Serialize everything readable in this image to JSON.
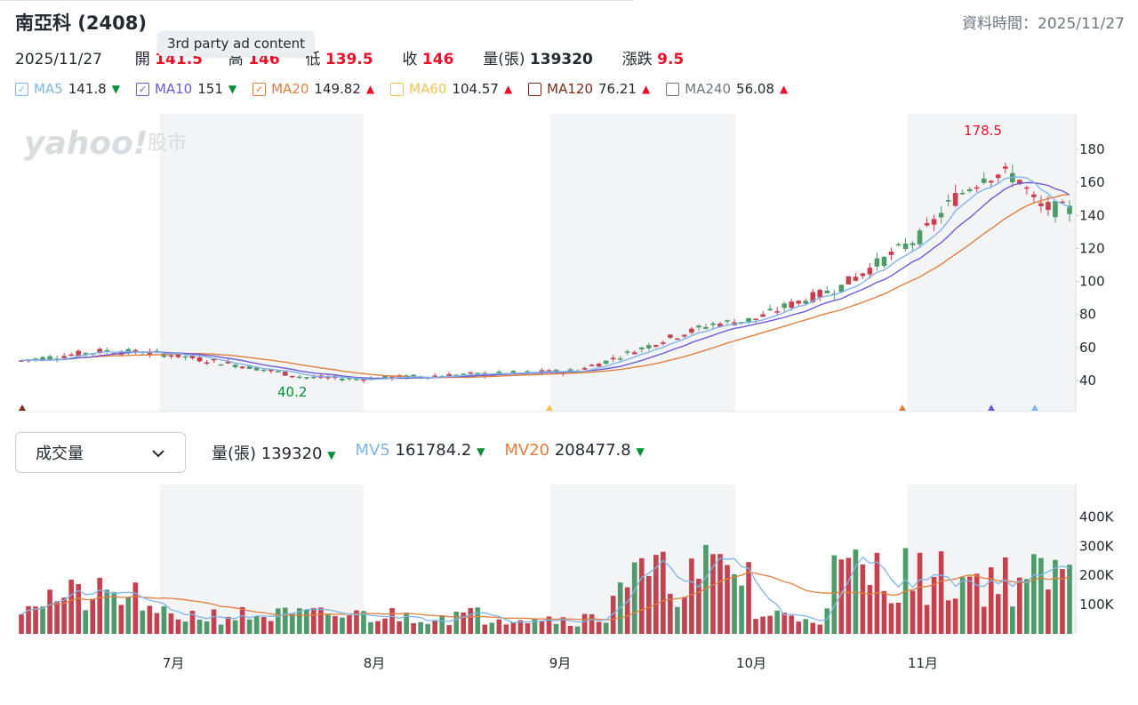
{
  "header": {
    "title": "南亞科 (2408)",
    "data_time_label": "資料時間：2025/11/27"
  },
  "quote": {
    "date": "2025/11/27",
    "open_label": "開",
    "open_value": "141.5",
    "high_label": "高",
    "high_value": "146",
    "low_label": "低",
    "low_value": "139.5",
    "close_label": "收",
    "close_value": "146",
    "volume_label": "量(張)",
    "volume_value": "139320",
    "change_label": "漲跌",
    "change_value": "9.5"
  },
  "ad_tooltip": "3rd party ad content",
  "ma_legend": [
    {
      "name": "MA5",
      "value": "141.8",
      "dir": "down",
      "color": "#7fb6e8",
      "checked": true
    },
    {
      "name": "MA10",
      "value": "151",
      "dir": "down",
      "color": "#6e5bd3",
      "checked": true
    },
    {
      "name": "MA20",
      "value": "149.82",
      "dir": "up",
      "color": "#e07f3f",
      "checked": true
    },
    {
      "name": "MA60",
      "value": "104.57",
      "dir": "up",
      "color": "#f0c556",
      "checked": false
    },
    {
      "name": "MA120",
      "value": "76.21",
      "dir": "up",
      "color": "#7a2e1a",
      "checked": false
    },
    {
      "name": "MA240",
      "value": "56.08",
      "dir": "up",
      "color": "#6e7780",
      "checked": false
    }
  ],
  "price_chart": {
    "watermark_brand": "yahoo!",
    "watermark_sub": "股市",
    "max_label": "178.5",
    "min_label": "40.2",
    "y_ticks": [
      "180",
      "160",
      "140",
      "120",
      "100",
      "80",
      "60",
      "40"
    ],
    "y_tick_values": [
      180,
      160,
      140,
      120,
      100,
      80,
      60,
      40
    ]
  },
  "volume_panel": {
    "selector_label": "成交量",
    "vol_label": "量(張)",
    "vol_value": "139320",
    "mv5_label": "MV5",
    "mv5_value": "161784.2",
    "mv20_label": "MV20",
    "mv20_value": "208477.8",
    "y_ticks": [
      "400K",
      "300K",
      "200K",
      "100K"
    ],
    "y_tick_values": [
      400000,
      300000,
      200000,
      100000
    ]
  },
  "x_months": [
    "7月",
    "8月",
    "9月",
    "10月",
    "11月"
  ],
  "colors": {
    "up": "#c2424f",
    "down": "#4f9a6a",
    "ma5": "#7fb6e8",
    "ma10": "#6e5bd3",
    "ma20": "#e07f3f",
    "band": "#f3f4f6"
  }
}
